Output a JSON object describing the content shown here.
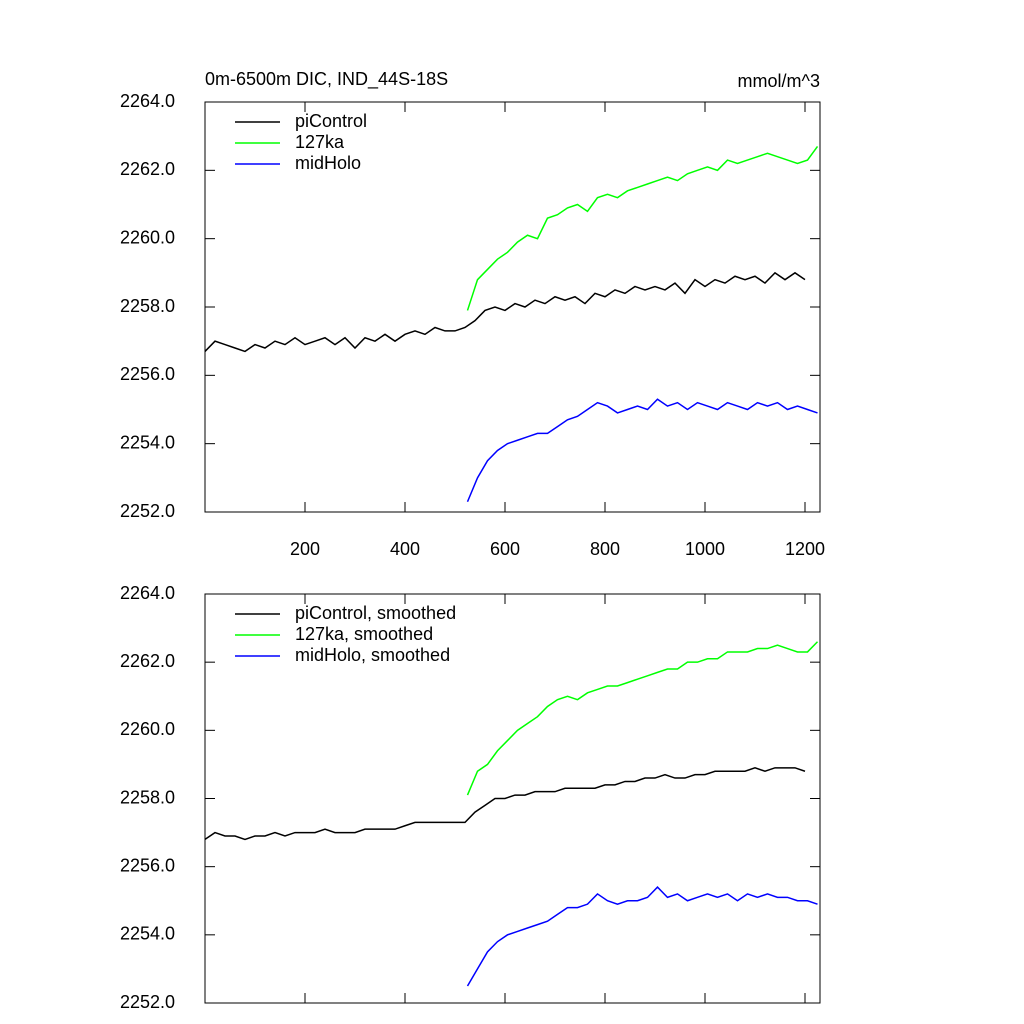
{
  "chart_data": [
    {
      "type": "line",
      "title": "0m-6500m DIC, IND_44S-18S",
      "units": "mmol/m^3",
      "xlim": [
        0,
        1230
      ],
      "xticks": [
        200,
        400,
        600,
        800,
        1000,
        1200
      ],
      "xtick_labels": true,
      "ylim": [
        2252,
        2264
      ],
      "yticks": [
        {
          "value": 2252,
          "label": "2252.0"
        },
        {
          "value": 2254,
          "label": "2254.0"
        },
        {
          "value": 2256,
          "label": "2256.0"
        },
        {
          "value": 2258,
          "label": "2258.0"
        },
        {
          "value": 2260,
          "label": "2260.0"
        },
        {
          "value": 2262,
          "label": "2262.0"
        },
        {
          "value": 2264,
          "label": "2264.0"
        }
      ],
      "series": [
        {
          "name": "piControl",
          "color": "#000000",
          "x": [
            0,
            20,
            40,
            60,
            80,
            100,
            120,
            140,
            160,
            180,
            200,
            220,
            240,
            260,
            280,
            300,
            320,
            340,
            360,
            380,
            400,
            420,
            440,
            460,
            480,
            500,
            520,
            540,
            560,
            580,
            600,
            620,
            640,
            660,
            680,
            700,
            720,
            740,
            760,
            780,
            800,
            820,
            840,
            860,
            880,
            900,
            920,
            940,
            960,
            980,
            1000,
            1020,
            1040,
            1060,
            1080,
            1100,
            1120,
            1140,
            1160,
            1180,
            1200
          ],
          "values": [
            2256.7,
            2257.0,
            2256.9,
            2256.8,
            2256.7,
            2256.9,
            2256.8,
            2257.0,
            2256.9,
            2257.1,
            2256.9,
            2257.0,
            2257.1,
            2256.9,
            2257.1,
            2256.8,
            2257.1,
            2257.0,
            2257.2,
            2257.0,
            2257.2,
            2257.3,
            2257.2,
            2257.4,
            2257.3,
            2257.3,
            2257.4,
            2257.6,
            2257.9,
            2258.0,
            2257.9,
            2258.1,
            2258.0,
            2258.2,
            2258.1,
            2258.3,
            2258.2,
            2258.3,
            2258.1,
            2258.4,
            2258.3,
            2258.5,
            2258.4,
            2258.6,
            2258.5,
            2258.6,
            2258.5,
            2258.7,
            2258.4,
            2258.8,
            2258.6,
            2258.8,
            2258.7,
            2258.9,
            2258.8,
            2258.9,
            2258.7,
            2259.0,
            2258.8,
            2259.0,
            2258.8
          ]
        },
        {
          "name": "127ka",
          "color": "#00ff00",
          "x": [
            525,
            545,
            565,
            585,
            605,
            625,
            645,
            665,
            685,
            705,
            725,
            745,
            765,
            785,
            805,
            825,
            845,
            865,
            885,
            905,
            925,
            945,
            965,
            985,
            1005,
            1025,
            1045,
            1065,
            1085,
            1105,
            1125,
            1145,
            1165,
            1185,
            1205,
            1225
          ],
          "values": [
            2257.9,
            2258.8,
            2259.1,
            2259.4,
            2259.6,
            2259.9,
            2260.1,
            2260.0,
            2260.6,
            2260.7,
            2260.9,
            2261.0,
            2260.8,
            2261.2,
            2261.3,
            2261.2,
            2261.4,
            2261.5,
            2261.6,
            2261.7,
            2261.8,
            2261.7,
            2261.9,
            2262.0,
            2262.1,
            2262.0,
            2262.3,
            2262.2,
            2262.3,
            2262.4,
            2262.5,
            2262.4,
            2262.3,
            2262.2,
            2262.3,
            2262.7
          ]
        },
        {
          "name": "midHolo",
          "color": "#0000ff",
          "x": [
            525,
            545,
            565,
            585,
            605,
            625,
            645,
            665,
            685,
            705,
            725,
            745,
            765,
            785,
            805,
            825,
            845,
            865,
            885,
            905,
            925,
            945,
            965,
            985,
            1005,
            1025,
            1045,
            1065,
            1085,
            1105,
            1125,
            1145,
            1165,
            1185,
            1205,
            1225
          ],
          "values": [
            2252.3,
            2253.0,
            2253.5,
            2253.8,
            2254.0,
            2254.1,
            2254.2,
            2254.3,
            2254.3,
            2254.5,
            2254.7,
            2254.8,
            2255.0,
            2255.2,
            2255.1,
            2254.9,
            2255.0,
            2255.1,
            2255.0,
            2255.3,
            2255.1,
            2255.2,
            2255.0,
            2255.2,
            2255.1,
            2255.0,
            2255.2,
            2255.1,
            2255.0,
            2255.2,
            2255.1,
            2255.2,
            2255.0,
            2255.1,
            2255.0,
            2254.9
          ]
        }
      ]
    },
    {
      "type": "line",
      "xlim": [
        0,
        1230
      ],
      "xticks": [
        200,
        400,
        600,
        800,
        1000,
        1200
      ],
      "xtick_labels": false,
      "ylim": [
        2252,
        2264
      ],
      "yticks": [
        {
          "value": 2252,
          "label": "2252.0"
        },
        {
          "value": 2254,
          "label": "2254.0"
        },
        {
          "value": 2256,
          "label": "2256.0"
        },
        {
          "value": 2258,
          "label": "2258.0"
        },
        {
          "value": 2260,
          "label": "2260.0"
        },
        {
          "value": 2262,
          "label": "2262.0"
        },
        {
          "value": 2264,
          "label": "2264.0"
        }
      ],
      "series": [
        {
          "name": "piControl, smoothed",
          "color": "#000000",
          "x": [
            0,
            20,
            40,
            60,
            80,
            100,
            120,
            140,
            160,
            180,
            200,
            220,
            240,
            260,
            280,
            300,
            320,
            340,
            360,
            380,
            400,
            420,
            440,
            460,
            480,
            500,
            520,
            540,
            560,
            580,
            600,
            620,
            640,
            660,
            680,
            700,
            720,
            740,
            760,
            780,
            800,
            820,
            840,
            860,
            880,
            900,
            920,
            940,
            960,
            980,
            1000,
            1020,
            1040,
            1060,
            1080,
            1100,
            1120,
            1140,
            1160,
            1180,
            1200
          ],
          "values": [
            2256.8,
            2257.0,
            2256.9,
            2256.9,
            2256.8,
            2256.9,
            2256.9,
            2257.0,
            2256.9,
            2257.0,
            2257.0,
            2257.0,
            2257.1,
            2257.0,
            2257.0,
            2257.0,
            2257.1,
            2257.1,
            2257.1,
            2257.1,
            2257.2,
            2257.3,
            2257.3,
            2257.3,
            2257.3,
            2257.3,
            2257.3,
            2257.6,
            2257.8,
            2258.0,
            2258.0,
            2258.1,
            2258.1,
            2258.2,
            2258.2,
            2258.2,
            2258.3,
            2258.3,
            2258.3,
            2258.3,
            2258.4,
            2258.4,
            2258.5,
            2258.5,
            2258.6,
            2258.6,
            2258.7,
            2258.6,
            2258.6,
            2258.7,
            2258.7,
            2258.8,
            2258.8,
            2258.8,
            2258.8,
            2258.9,
            2258.8,
            2258.9,
            2258.9,
            2258.9,
            2258.8
          ]
        },
        {
          "name": "127ka, smoothed",
          "color": "#00ff00",
          "x": [
            525,
            545,
            565,
            585,
            605,
            625,
            645,
            665,
            685,
            705,
            725,
            745,
            765,
            785,
            805,
            825,
            845,
            865,
            885,
            905,
            925,
            945,
            965,
            985,
            1005,
            1025,
            1045,
            1065,
            1085,
            1105,
            1125,
            1145,
            1165,
            1185,
            1205,
            1225
          ],
          "values": [
            2258.1,
            2258.8,
            2259.0,
            2259.4,
            2259.7,
            2260.0,
            2260.2,
            2260.4,
            2260.7,
            2260.9,
            2261.0,
            2260.9,
            2261.1,
            2261.2,
            2261.3,
            2261.3,
            2261.4,
            2261.5,
            2261.6,
            2261.7,
            2261.8,
            2261.8,
            2262.0,
            2262.0,
            2262.1,
            2262.1,
            2262.3,
            2262.3,
            2262.3,
            2262.4,
            2262.4,
            2262.5,
            2262.4,
            2262.3,
            2262.3,
            2262.6
          ]
        },
        {
          "name": "midHolo, smoothed",
          "color": "#0000ff",
          "x": [
            525,
            545,
            565,
            585,
            605,
            625,
            645,
            665,
            685,
            705,
            725,
            745,
            765,
            785,
            805,
            825,
            845,
            865,
            885,
            905,
            925,
            945,
            965,
            985,
            1005,
            1025,
            1045,
            1065,
            1085,
            1105,
            1125,
            1145,
            1165,
            1185,
            1205,
            1225
          ],
          "values": [
            2252.5,
            2253.0,
            2253.5,
            2253.8,
            2254.0,
            2254.1,
            2254.2,
            2254.3,
            2254.4,
            2254.6,
            2254.8,
            2254.8,
            2254.9,
            2255.2,
            2255.0,
            2254.9,
            2255.0,
            2255.0,
            2255.1,
            2255.4,
            2255.1,
            2255.2,
            2255.0,
            2255.1,
            2255.2,
            2255.1,
            2255.2,
            2255.0,
            2255.2,
            2255.1,
            2255.2,
            2255.1,
            2255.1,
            2255.0,
            2255.0,
            2254.9
          ]
        }
      ]
    }
  ]
}
